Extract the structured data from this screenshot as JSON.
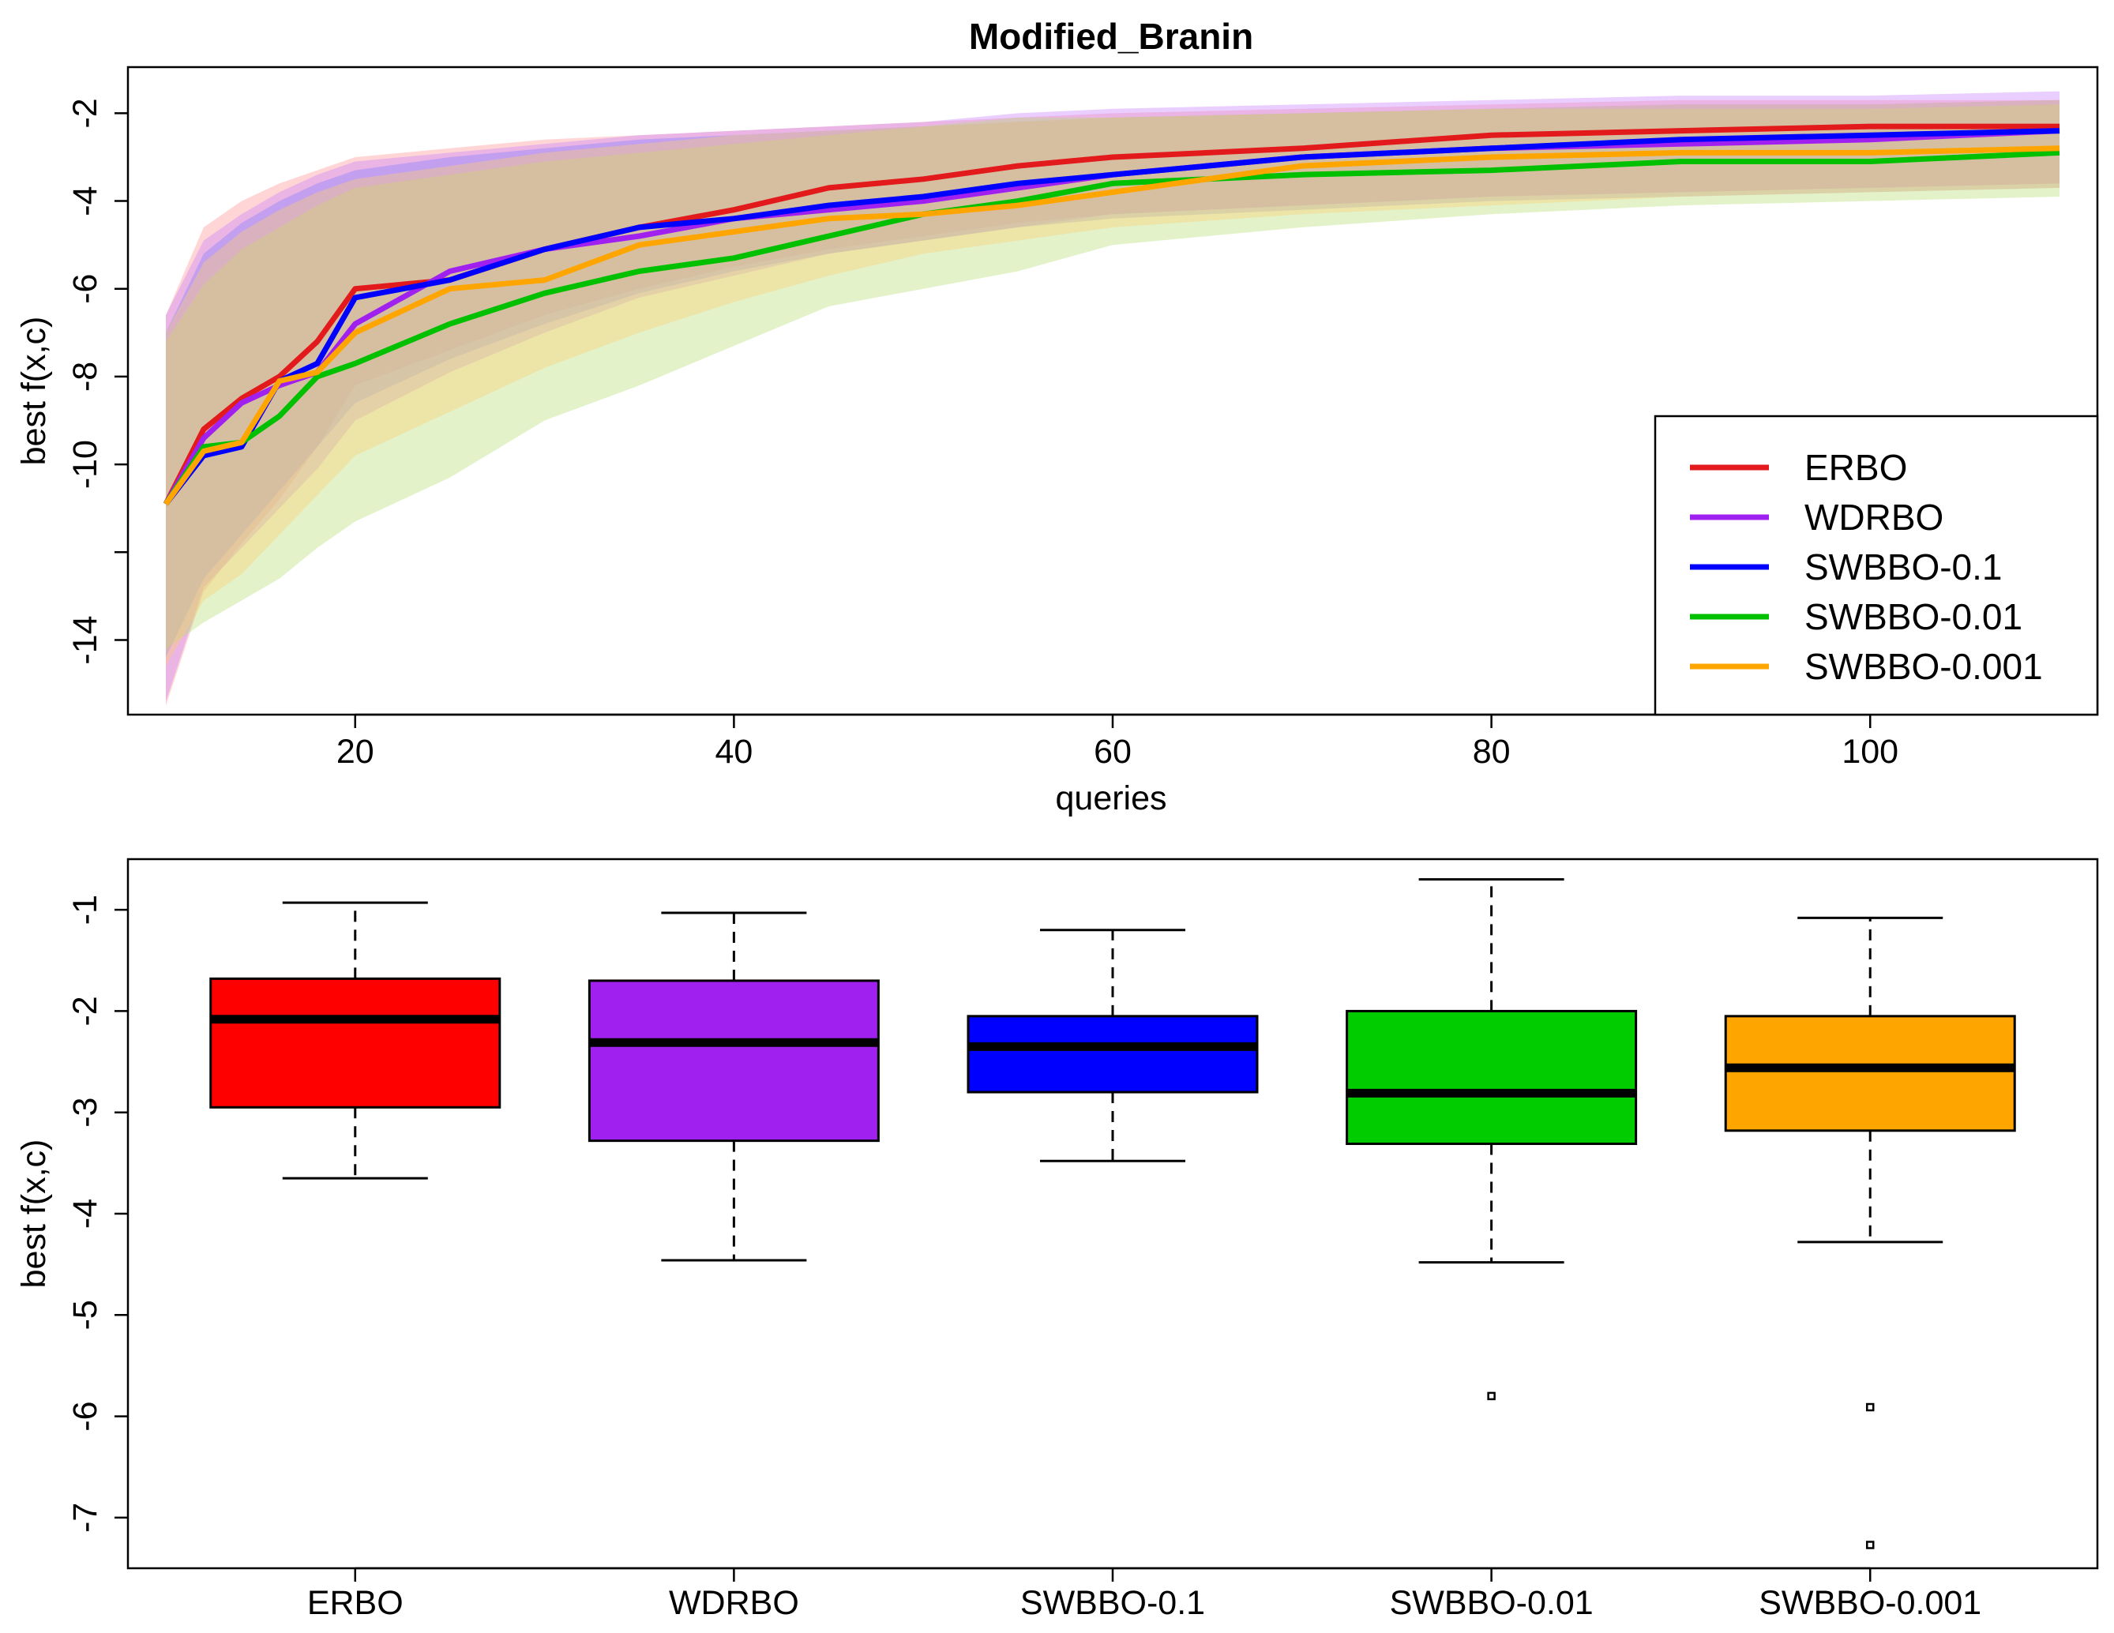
{
  "chart_data": [
    {
      "type": "line",
      "title": "Modified_Branin",
      "xlabel": "queries",
      "ylabel": "best f(x,c)",
      "xlim": [
        8,
        112
      ],
      "ylim": [
        -15.7,
        -0.95
      ],
      "x_ticks": [
        20,
        40,
        60,
        80,
        100
      ],
      "y_ticks": [
        -14,
        -12,
        -10,
        -8,
        -6,
        -4,
        -2
      ],
      "y_tick_labels": [
        "-14",
        "",
        "-10",
        "-8",
        "-6",
        "-4",
        "-2"
      ],
      "legend_position": "bottom-right",
      "x": [
        10,
        12,
        14,
        16,
        18,
        20,
        25,
        30,
        35,
        40,
        45,
        50,
        55,
        60,
        70,
        80,
        90,
        100,
        110
      ],
      "series": [
        {
          "name": "ERBO",
          "color": "#e31a1c",
          "band_color": "#ff9090",
          "values": [
            -10.9,
            -9.2,
            -8.5,
            -8.0,
            -7.2,
            -6.0,
            -5.8,
            -5.1,
            -4.6,
            -4.2,
            -3.7,
            -3.5,
            -3.2,
            -3.0,
            -2.8,
            -2.5,
            -2.4,
            -2.3,
            -2.3
          ],
          "lower": [
            -15.5,
            -12.9,
            -11.8,
            -10.8,
            -9.6,
            -8.2,
            -7.4,
            -6.6,
            -6.0,
            -5.5,
            -5.1,
            -4.8,
            -4.5,
            -4.3,
            -4.1,
            -3.9,
            -3.8,
            -3.7,
            -3.6
          ],
          "upper": [
            -6.6,
            -4.6,
            -4.0,
            -3.6,
            -3.3,
            -3.0,
            -2.8,
            -2.6,
            -2.5,
            -2.4,
            -2.3,
            -2.2,
            -2.1,
            -2.0,
            -1.9,
            -1.8,
            -1.7,
            -1.7,
            -1.7
          ]
        },
        {
          "name": "WDRBO",
          "color": "#a020f0",
          "band_color": "#c77dff",
          "values": [
            -10.9,
            -9.4,
            -8.6,
            -8.2,
            -7.9,
            -6.8,
            -5.6,
            -5.1,
            -4.8,
            -4.4,
            -4.2,
            -4.0,
            -3.7,
            -3.4,
            -3.0,
            -2.8,
            -2.7,
            -2.6,
            -2.4
          ],
          "lower": [
            -15.4,
            -12.8,
            -11.9,
            -11.0,
            -10.1,
            -9.0,
            -7.9,
            -7.0,
            -6.2,
            -5.7,
            -5.2,
            -4.9,
            -4.6,
            -4.3,
            -4.1,
            -3.9,
            -3.8,
            -3.7,
            -3.6
          ],
          "upper": [
            -6.6,
            -4.9,
            -4.3,
            -3.8,
            -3.4,
            -3.1,
            -2.9,
            -2.7,
            -2.5,
            -2.4,
            -2.3,
            -2.2,
            -2.0,
            -1.9,
            -1.8,
            -1.7,
            -1.6,
            -1.6,
            -1.5
          ]
        },
        {
          "name": "SWBBO-0.1",
          "color": "#0000ff",
          "band_color": "#8080ff",
          "values": [
            -10.9,
            -9.8,
            -9.6,
            -8.1,
            -7.7,
            -6.2,
            -5.8,
            -5.1,
            -4.6,
            -4.4,
            -4.1,
            -3.9,
            -3.6,
            -3.4,
            -3.0,
            -2.8,
            -2.6,
            -2.5,
            -2.4
          ],
          "lower": [
            -14.4,
            -12.6,
            -11.6,
            -10.6,
            -9.6,
            -8.6,
            -7.6,
            -6.8,
            -6.1,
            -5.6,
            -5.2,
            -4.9,
            -4.6,
            -4.4,
            -4.2,
            -4.0,
            -3.9,
            -3.8,
            -3.7
          ],
          "upper": [
            -7.0,
            -5.2,
            -4.5,
            -4.0,
            -3.6,
            -3.3,
            -3.0,
            -2.8,
            -2.6,
            -2.5,
            -2.4,
            -2.3,
            -2.2,
            -2.1,
            -2.0,
            -1.9,
            -1.8,
            -1.8,
            -1.7
          ]
        },
        {
          "name": "SWBBO-0.01",
          "color": "#00c000",
          "band_color": "#b5dc70",
          "values": [
            -10.9,
            -9.6,
            -9.5,
            -8.9,
            -8.0,
            -7.7,
            -6.8,
            -6.1,
            -5.6,
            -5.3,
            -4.8,
            -4.3,
            -4.0,
            -3.6,
            -3.4,
            -3.3,
            -3.1,
            -3.1,
            -2.9
          ],
          "lower": [
            -14.2,
            -13.6,
            -13.1,
            -12.6,
            -11.9,
            -11.3,
            -10.3,
            -9.0,
            -8.2,
            -7.3,
            -6.4,
            -6.0,
            -5.6,
            -5.0,
            -4.6,
            -4.3,
            -4.1,
            -4.0,
            -3.9
          ],
          "upper": [
            -7.2,
            -5.9,
            -5.1,
            -4.6,
            -4.1,
            -3.7,
            -3.4,
            -3.1,
            -2.9,
            -2.7,
            -2.5,
            -2.3,
            -2.1,
            -2.1,
            -2.0,
            -1.9,
            -1.9,
            -1.9,
            -1.8
          ]
        },
        {
          "name": "SWBBO-0.001",
          "color": "#ffa500",
          "band_color": "#ffcc70",
          "values": [
            -10.9,
            -9.7,
            -9.5,
            -8.1,
            -7.9,
            -7.0,
            -6.0,
            -5.8,
            -5.0,
            -4.7,
            -4.4,
            -4.3,
            -4.1,
            -3.8,
            -3.2,
            -3.0,
            -2.9,
            -2.9,
            -2.8
          ],
          "lower": [
            -14.6,
            -13.1,
            -12.5,
            -11.6,
            -10.7,
            -9.8,
            -8.8,
            -7.8,
            -7.0,
            -6.3,
            -5.7,
            -5.2,
            -4.9,
            -4.6,
            -4.3,
            -4.1,
            -3.9,
            -3.8,
            -3.7
          ],
          "upper": [
            -7.0,
            -5.4,
            -4.7,
            -4.2,
            -3.8,
            -3.5,
            -3.2,
            -2.9,
            -2.7,
            -2.5,
            -2.4,
            -2.3,
            -2.2,
            -2.1,
            -2.0,
            -1.9,
            -1.8,
            -1.8,
            -1.7
          ]
        }
      ]
    },
    {
      "type": "box",
      "ylabel": "best f(x,c)",
      "ylim": [
        -7.5,
        -0.5
      ],
      "y_ticks": [
        -7,
        -6,
        -5,
        -4,
        -3,
        -2,
        -1
      ],
      "categories": [
        "ERBO",
        "WDRBO",
        "SWBBO-0.1",
        "SWBBO-0.01",
        "SWBBO-0.001"
      ],
      "boxes": [
        {
          "name": "ERBO",
          "color": "#ff0000",
          "whisker_low": -3.65,
          "q1": -2.95,
          "median": -2.08,
          "q3": -1.68,
          "whisker_high": -0.93,
          "outliers": []
        },
        {
          "name": "WDRBO",
          "color": "#a020f0",
          "whisker_low": -4.46,
          "q1": -3.28,
          "median": -2.31,
          "q3": -1.7,
          "whisker_high": -1.03,
          "outliers": []
        },
        {
          "name": "SWBBO-0.1",
          "color": "#0000ff",
          "whisker_low": -3.48,
          "q1": -2.8,
          "median": -2.35,
          "q3": -2.05,
          "whisker_high": -1.2,
          "outliers": []
        },
        {
          "name": "SWBBO-0.01",
          "color": "#00cc00",
          "whisker_low": -4.48,
          "q1": -3.31,
          "median": -2.81,
          "q3": -2.0,
          "whisker_high": -0.7,
          "outliers": [
            -5.8
          ]
        },
        {
          "name": "SWBBO-0.001",
          "color": "#ffa500",
          "whisker_low": -4.28,
          "q1": -3.18,
          "median": -2.56,
          "q3": -2.05,
          "whisker_high": -1.08,
          "outliers": [
            -5.91,
            -7.27
          ]
        }
      ]
    }
  ]
}
